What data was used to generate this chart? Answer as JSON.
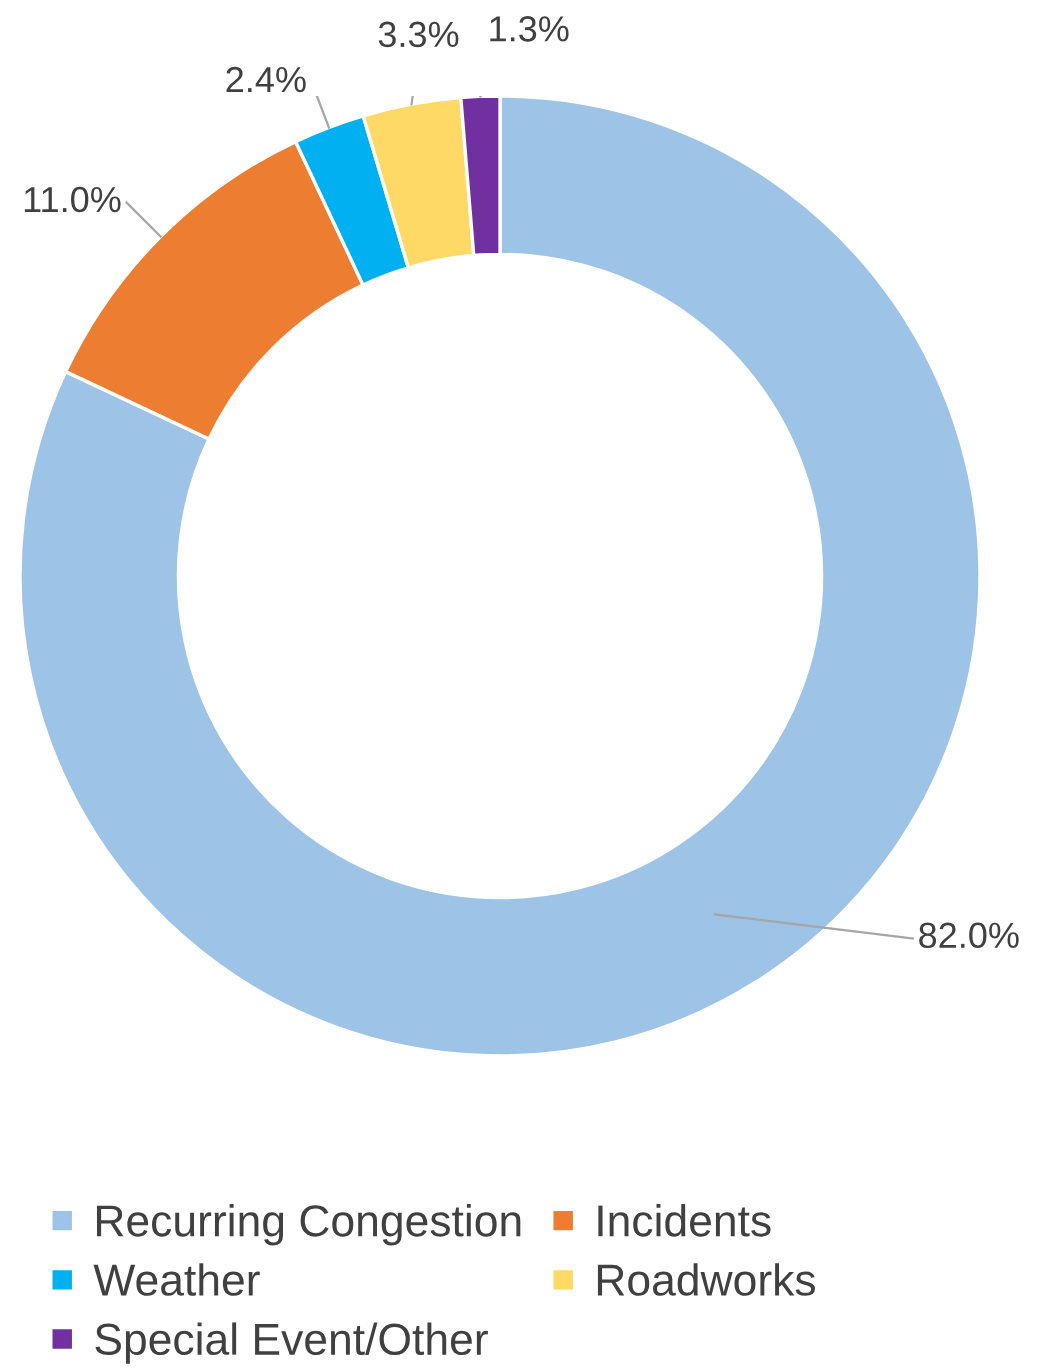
{
  "chart_data": {
    "type": "donut",
    "categories": [
      "Recurring Congestion",
      "Incidents",
      "Weather",
      "Roadworks",
      "Special Event/Other"
    ],
    "values": [
      82.0,
      11.0,
      2.4,
      3.3,
      1.3
    ],
    "colors": [
      "#9dc3e6",
      "#ed7d31",
      "#00b0f0",
      "#ffd966",
      "#7030a0"
    ],
    "value_labels": [
      "82.0%",
      "11.0%",
      "2.4%",
      "3.3%",
      "1.3%"
    ],
    "legend": "bottom"
  }
}
